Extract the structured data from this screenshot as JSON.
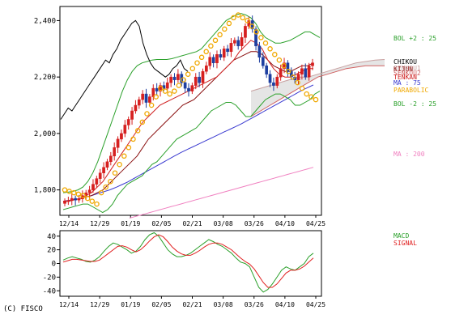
{
  "copyright": "(C) FISCO",
  "colors": {
    "frame": "#000000",
    "candle_up": "#d62020",
    "candle_down": "#1e3fa0",
    "ichimoku_cloud": "#b5b5b5",
    "senkou_a": "#c8a0a0",
    "senkou_b": "#d06060",
    "chikou": "#000000",
    "kijun": "#8a1010",
    "tenkan": "#d02020",
    "ma75": "#3a3ad0",
    "ma200": "#f080c0",
    "bol_band": "#2aa02a",
    "parabolic": "#f0a800",
    "macd": "#2aa02a",
    "signal": "#e02020"
  },
  "chart_data": [
    {
      "type": "candlestick",
      "title": "",
      "ylim": [
        1710,
        2450
      ],
      "y_ticks": [
        "2,400",
        "2,200",
        "2,000",
        "1,800"
      ],
      "y_tick_values": [
        2400,
        2200,
        2000,
        1800
      ],
      "x_tick_labels": [
        "12/14",
        "12/29",
        "01/19",
        "02/05",
        "02/21",
        "03/08",
        "03/26",
        "04/10",
        "04/25"
      ],
      "legend": [
        {
          "name": "BOL +2 : 25",
          "color": "#2aa02a"
        },
        {
          "name": "CHIKOU",
          "color": "#000000"
        },
        {
          "name": "SENKOU1",
          "color": "#c8a0a0"
        },
        {
          "name": "KIJUN",
          "color": "#8a1010"
        },
        {
          "name": "SENKOU2",
          "color": "#d06060"
        },
        {
          "name": "TENKAN",
          "color": "#d02020"
        },
        {
          "name": "MA : 75",
          "color": "#3a3ad0"
        },
        {
          "name": "PARABOLIC",
          "color": "#f0a800"
        },
        {
          "name": "BOL -2 : 25",
          "color": "#2aa02a"
        },
        {
          "name": "MA : 200",
          "color": "#f080c0"
        }
      ],
      "close": [
        1760,
        1762,
        1770,
        1764,
        1768,
        1780,
        1790,
        1800,
        1820,
        1840,
        1860,
        1880,
        1900,
        1920,
        1950,
        1980,
        2000,
        2030,
        2050,
        2080,
        2100,
        2120,
        2140,
        2110,
        2130,
        2160,
        2150,
        2170,
        2160,
        2180,
        2200,
        2190,
        2210,
        2180,
        2160,
        2150,
        2170,
        2200,
        2180,
        2220,
        2240,
        2270,
        2250,
        2280,
        2270,
        2300,
        2290,
        2320,
        2330,
        2310,
        2340,
        2380,
        2400,
        2370,
        2310,
        2270,
        2240,
        2210,
        2180,
        2170,
        2200,
        2230,
        2250,
        2220,
        2200,
        2190,
        2210,
        2230,
        2200,
        2240,
        2250
      ],
      "ma75": [
        1760,
        1762,
        1764,
        1766,
        1768,
        1771,
        1774,
        1777,
        1780,
        1784,
        1788,
        1792,
        1796,
        1800,
        1805,
        1810,
        1816,
        1822,
        1828,
        1835,
        1842,
        1849,
        1856,
        1863,
        1870,
        1877,
        1884,
        1891,
        1898,
        1905,
        1912,
        1919,
        1926,
        1933,
        1939,
        1945,
        1951,
        1957,
        1963,
        1969,
        1975,
        1981,
        1987,
        1993,
        1999,
        2005,
        2011,
        2017,
        2023,
        2029,
        2035,
        2042,
        2049,
        2056,
        2063,
        2070,
        2077,
        2084,
        2091,
        2098,
        2105,
        2112,
        2119,
        2126,
        2133,
        2140,
        2147,
        2154,
        2160,
        2166,
        2172
      ],
      "ma200": [
        1700,
        1705,
        1710,
        1715,
        1720,
        1725,
        1730,
        1735,
        1740,
        1745,
        1750,
        1755,
        1760,
        1765,
        1770,
        1775,
        1780,
        1785,
        1790,
        1795,
        1800,
        1805,
        1810,
        1815,
        1820,
        1825,
        1830,
        1835,
        1840,
        1845,
        1850,
        1855,
        1860,
        1865,
        1870,
        1875,
        1880
      ],
      "bol_upper": [
        1790,
        1792,
        1795,
        1800,
        1810,
        1830,
        1860,
        1900,
        1950,
        2000,
        2050,
        2100,
        2150,
        2190,
        2220,
        2240,
        2250,
        2255,
        2260,
        2262,
        2262,
        2262,
        2265,
        2270,
        2275,
        2280,
        2285,
        2290,
        2300,
        2320,
        2340,
        2360,
        2380,
        2400,
        2410,
        2420,
        2425,
        2420,
        2410,
        2390,
        2360,
        2340,
        2330,
        2320,
        2320,
        2325,
        2330,
        2340,
        2350,
        2360,
        2360,
        2350,
        2340
      ],
      "bol_lower": [
        1730,
        1735,
        1740,
        1745,
        1750,
        1750,
        1740,
        1730,
        1720,
        1730,
        1750,
        1780,
        1800,
        1820,
        1830,
        1840,
        1850,
        1870,
        1890,
        1900,
        1920,
        1940,
        1960,
        1980,
        1990,
        2000,
        2010,
        2020,
        2040,
        2060,
        2080,
        2090,
        2100,
        2110,
        2110,
        2100,
        2080,
        2060,
        2060,
        2080,
        2100,
        2120,
        2130,
        2140,
        2140,
        2130,
        2120,
        2100,
        2100,
        2110,
        2120,
        2140,
        2150
      ],
      "tenkan": [
        1760,
        1762,
        1765,
        1770,
        1780,
        1790,
        1810,
        1830,
        1860,
        1890,
        1920,
        1950,
        1980,
        2010,
        2040,
        2060,
        2080,
        2100,
        2110,
        2120,
        2130,
        2140,
        2150,
        2160,
        2170,
        2180,
        2190,
        2200,
        2220,
        2240,
        2260,
        2290,
        2310,
        2330,
        2320,
        2300,
        2260,
        2230,
        2210,
        2200,
        2200,
        2210,
        2220,
        2230,
        2230
      ],
      "kijun": [
        1760,
        1760,
        1765,
        1770,
        1775,
        1780,
        1790,
        1800,
        1820,
        1840,
        1860,
        1880,
        1900,
        1920,
        1950,
        1980,
        2000,
        2020,
        2040,
        2060,
        2080,
        2100,
        2110,
        2120,
        2140,
        2160,
        2180,
        2200,
        2220,
        2240,
        2260,
        2270,
        2280,
        2290,
        2290,
        2280,
        2260,
        2240,
        2230,
        2220,
        2220,
        2230,
        2240,
        2240,
        2250
      ],
      "senkou_a": [
        2150,
        2160,
        2170,
        2180,
        2190,
        2200,
        2200,
        2210,
        2220,
        2230,
        2240,
        2250,
        2255,
        2260,
        2262
      ],
      "senkou_b": [
        2060,
        2080,
        2100,
        2120,
        2140,
        2160,
        2180,
        2200,
        2210,
        2220,
        2230,
        2235,
        2240,
        2240,
        2240
      ],
      "chikou": [
        2050,
        2070,
        2090,
        2080,
        2100,
        2120,
        2140,
        2160,
        2180,
        2200,
        2220,
        2240,
        2260,
        2250,
        2280,
        2300,
        2330,
        2350,
        2370,
        2390,
        2400,
        2380,
        2320,
        2280,
        2250,
        2230,
        2220,
        2210,
        2200,
        2210,
        2230,
        2240,
        2260,
        2230,
        2220
      ],
      "parabolic": [
        1800,
        1795,
        1790,
        1785,
        1780,
        1770,
        1760,
        1750,
        1790,
        1810,
        1830,
        1860,
        1890,
        1920,
        1950,
        1980,
        2010,
        2040,
        2070,
        2100,
        2130,
        2160,
        2150,
        2140,
        2150,
        2170,
        2190,
        2210,
        2230,
        2250,
        2270,
        2290,
        2310,
        2330,
        2350,
        2370,
        2390,
        2410,
        2420,
        2410,
        2400,
        2380,
        2360,
        2340,
        2320,
        2300,
        2280,
        2260,
        2240,
        2220,
        2200,
        2180,
        2160,
        2140,
        2130,
        2120
      ]
    },
    {
      "type": "line",
      "title": "",
      "ylim": [
        -48,
        48
      ],
      "y_ticks": [
        "40",
        "20",
        "0",
        "-20",
        "-40"
      ],
      "y_tick_values": [
        40,
        20,
        0,
        -20,
        -40
      ],
      "x_tick_labels": [
        "12/14",
        "12/29",
        "01/19",
        "02/05",
        "02/21",
        "03/08",
        "03/26",
        "04/10",
        "04/25"
      ],
      "series": [
        {
          "name": "MACD",
          "values": [
            5,
            8,
            10,
            8,
            6,
            3,
            2,
            5,
            10,
            18,
            25,
            30,
            28,
            24,
            20,
            15,
            18,
            25,
            35,
            42,
            45,
            40,
            30,
            20,
            14,
            10,
            10,
            12,
            15,
            20,
            25,
            30,
            35,
            32,
            28,
            25,
            20,
            15,
            8,
            2,
            0,
            -5,
            -20,
            -35,
            -42,
            -38,
            -30,
            -20,
            -10,
            -5,
            -8,
            -10,
            -5,
            0,
            10,
            15
          ]
        },
        {
          "name": "SIGNAL",
          "values": [
            2,
            4,
            6,
            6,
            5,
            4,
            3,
            3,
            5,
            10,
            15,
            20,
            25,
            26,
            24,
            20,
            17,
            20,
            26,
            33,
            39,
            42,
            39,
            32,
            24,
            18,
            14,
            12,
            12,
            15,
            19,
            24,
            28,
            30,
            30,
            28,
            24,
            20,
            14,
            8,
            3,
            -1,
            -8,
            -18,
            -28,
            -35,
            -35,
            -30,
            -22,
            -14,
            -10,
            -10,
            -8,
            -4,
            2,
            8
          ]
        }
      ]
    }
  ]
}
